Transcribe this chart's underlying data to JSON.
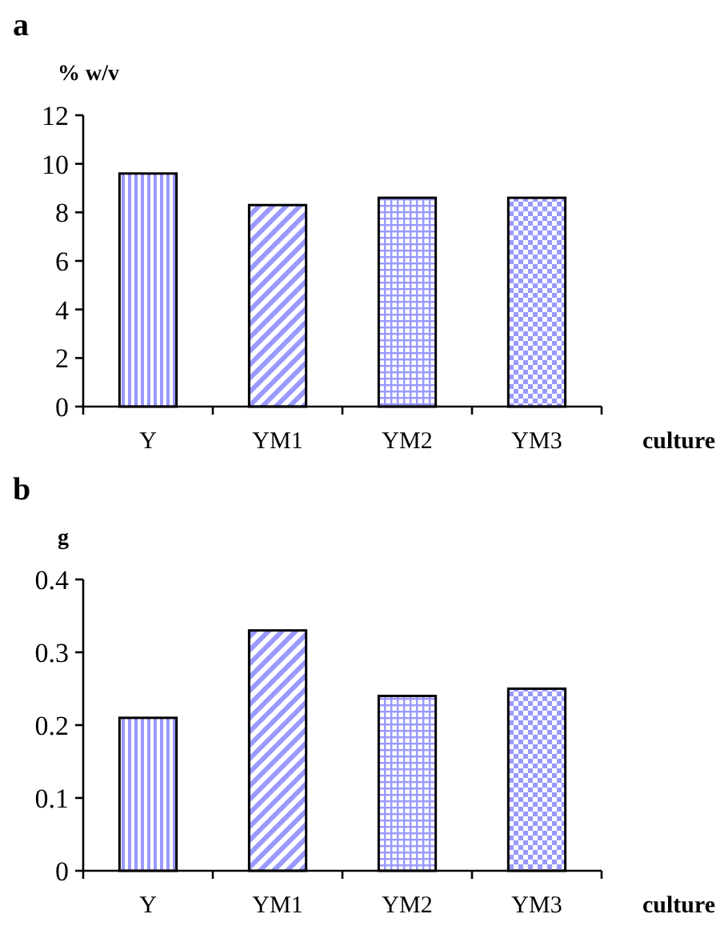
{
  "chart_data": [
    {
      "type": "bar",
      "title": "a",
      "ylabel": "% w/v",
      "xlabel": "culture",
      "categories": [
        "Y",
        "YM1",
        "YM2",
        "YM3"
      ],
      "values": [
        9.6,
        8.3,
        8.6,
        8.6
      ],
      "colors": [
        "#9999ff",
        "#9999ff",
        "#9999ff",
        "#9999ff"
      ],
      "ylim": [
        0,
        12
      ],
      "yticks": [
        0,
        2,
        4,
        6,
        8,
        10,
        12
      ],
      "grid": false
    },
    {
      "type": "bar",
      "title": "b",
      "ylabel": "g",
      "xlabel": "culture",
      "categories": [
        "Y",
        "YM1",
        "YM2",
        "YM3"
      ],
      "values": [
        0.21,
        0.33,
        0.24,
        0.25
      ],
      "colors": [
        "#9999ff",
        "#9999ff",
        "#9999ff",
        "#9999ff"
      ],
      "ylim": [
        0,
        0.4
      ],
      "yticks": [
        0,
        0.1,
        0.2,
        0.3,
        0.4
      ],
      "grid": false
    }
  ]
}
